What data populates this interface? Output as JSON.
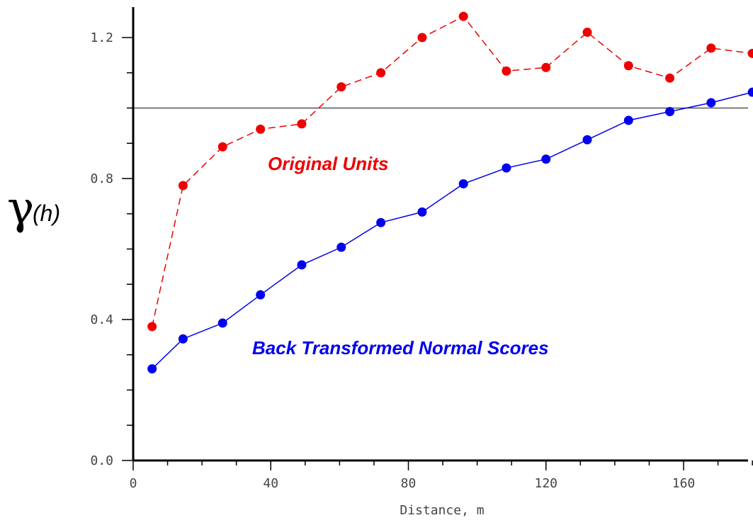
{
  "chart_data": {
    "type": "line",
    "title": "",
    "xlabel": "Distance, m",
    "ylabel": {
      "symbol": "γ",
      "suffix": "(h)"
    },
    "xlim": [
      0,
      180
    ],
    "ylim": [
      0.0,
      1.3
    ],
    "xticks": [
      0,
      40,
      80,
      120,
      160
    ],
    "xtick_labels": [
      "0",
      "40",
      "80",
      "120",
      "160"
    ],
    "yticks": [
      0.0,
      0.4,
      0.8,
      1.2
    ],
    "ytick_labels": [
      "0.0",
      "0.4",
      "0.8",
      "1.2"
    ],
    "reference_line": {
      "y": 1.0,
      "color": "#555555"
    },
    "series": [
      {
        "name": "Original Units",
        "color": "#ee0000",
        "dashed": true,
        "x": [
          5.5,
          14.5,
          26,
          37,
          49,
          60.5,
          72,
          84,
          96,
          108.5,
          120,
          132,
          144,
          156,
          168,
          180
        ],
        "y": [
          0.38,
          0.78,
          0.89,
          0.94,
          0.955,
          1.06,
          1.1,
          1.2,
          1.26,
          1.105,
          1.115,
          1.215,
          1.12,
          1.085,
          1.17,
          1.155
        ]
      },
      {
        "name": "Back Transformed Normal Scores",
        "color": "#0000ee",
        "dashed": false,
        "x": [
          5.5,
          14.5,
          26,
          37,
          49,
          60.5,
          72,
          84,
          96,
          108.5,
          120,
          132,
          144,
          156,
          168,
          180
        ],
        "y": [
          0.26,
          0.345,
          0.39,
          0.47,
          0.555,
          0.605,
          0.675,
          0.705,
          0.785,
          0.83,
          0.855,
          0.91,
          0.965,
          0.99,
          1.015,
          1.045
        ]
      }
    ],
    "annotations": {
      "original_units": "Original Units",
      "back_transformed": "Back Transformed Normal Scores"
    }
  }
}
